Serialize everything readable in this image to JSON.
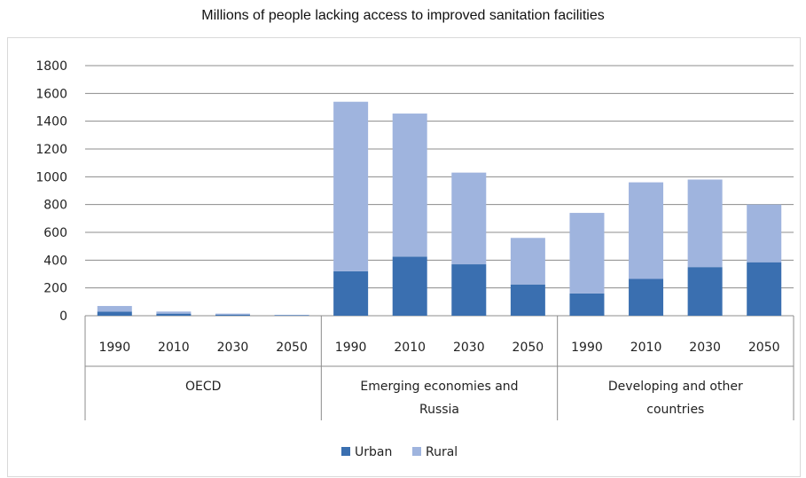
{
  "chart_data": {
    "type": "bar",
    "stacked": true,
    "title": "Millions of people lacking access to improved sanitation facilities",
    "ylim": [
      0,
      1800
    ],
    "yticks": [
      0,
      200,
      400,
      600,
      800,
      1000,
      1200,
      1400,
      1600,
      1800
    ],
    "grid": true,
    "legend_position": "bottom",
    "groups": [
      {
        "label": "OECD",
        "categories": [
          "1990",
          "2010",
          "2030",
          "2050"
        ]
      },
      {
        "label": "Emerging economies and Russia",
        "label_lines": [
          "Emerging economies and",
          "Russia"
        ],
        "categories": [
          "1990",
          "2010",
          "2030",
          "2050"
        ]
      },
      {
        "label": "Developing and other countries",
        "label_lines": [
          "Developing and other",
          "countries"
        ],
        "categories": [
          "1990",
          "2010",
          "2030",
          "2050"
        ]
      }
    ],
    "series": [
      {
        "name": "Urban",
        "color": "#3a6fb0",
        "values": [
          30,
          15,
          8,
          3,
          320,
          425,
          370,
          225,
          160,
          265,
          350,
          385
        ]
      },
      {
        "name": "Rural",
        "color": "#9fb4de",
        "values": [
          40,
          15,
          7,
          3,
          1220,
          1030,
          660,
          335,
          580,
          695,
          630,
          415
        ]
      }
    ]
  }
}
